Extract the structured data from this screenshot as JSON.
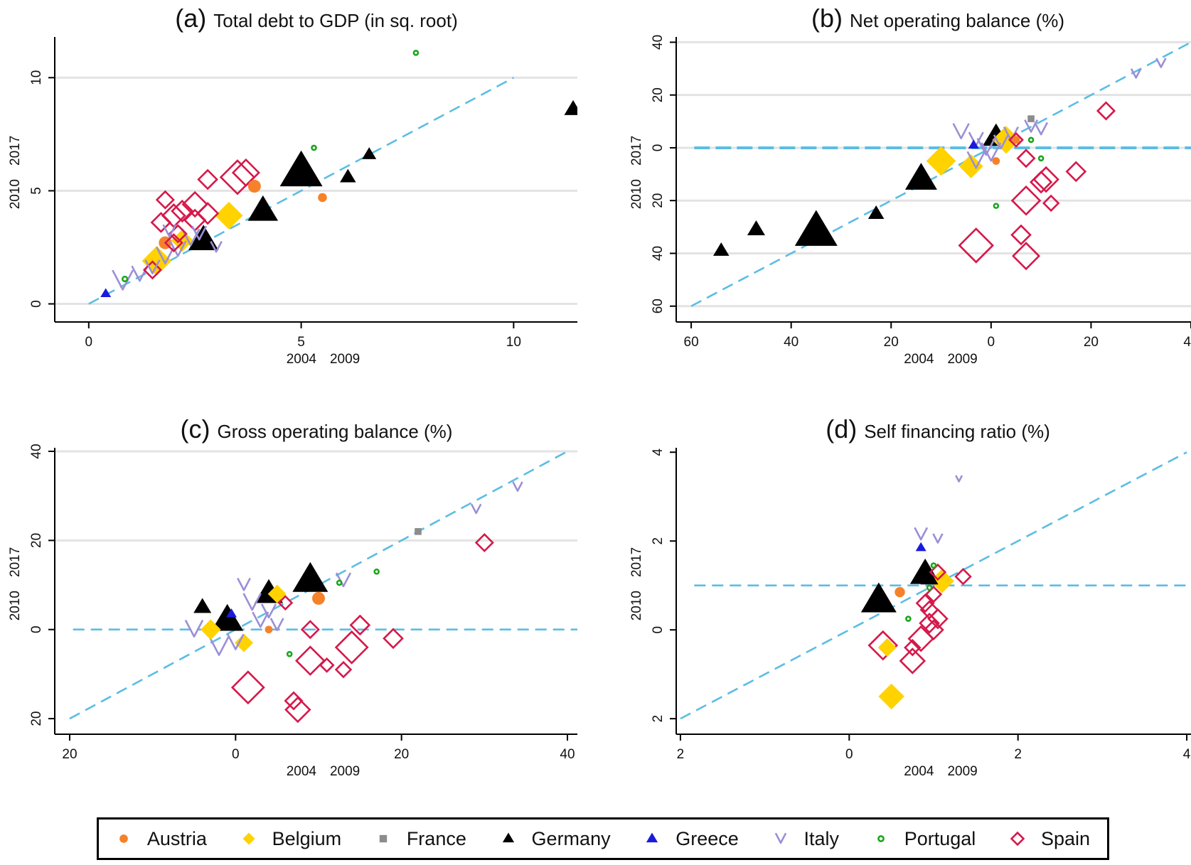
{
  "chart_data": [
    {
      "type": "scatter",
      "title_letter": "(a)",
      "title": "Total debt to GDP (in sq. root)",
      "xlabel": "2004 2009",
      "ylabel": "2010 2017",
      "xlim": [
        -0.8,
        11.5
      ],
      "ylim": [
        -0.8,
        11.8
      ],
      "xticks": [
        0,
        5,
        10
      ],
      "yticks": [
        0,
        5,
        10
      ],
      "grid": [
        0,
        5,
        10
      ],
      "refline": "diagonal",
      "hline": null,
      "points": [
        {
          "c": "Germany",
          "x": 11.4,
          "y": 8.6,
          "s": 1.0
        },
        {
          "c": "Germany",
          "x": 5.0,
          "y": 5.8,
          "s": 2.4
        },
        {
          "c": "Germany",
          "x": 4.1,
          "y": 4.1,
          "s": 1.7
        },
        {
          "c": "Germany",
          "x": 6.1,
          "y": 5.6,
          "s": 0.9
        },
        {
          "c": "Germany",
          "x": 6.6,
          "y": 6.6,
          "s": 0.8
        },
        {
          "c": "Germany",
          "x": 2.7,
          "y": 2.8,
          "s": 1.7
        },
        {
          "c": "Portugal",
          "x": 7.7,
          "y": 11.1,
          "s": 0.5
        },
        {
          "c": "Portugal",
          "x": 5.3,
          "y": 6.9,
          "s": 0.5
        },
        {
          "c": "Portugal",
          "x": 0.85,
          "y": 1.1,
          "s": 0.6
        },
        {
          "c": "Austria",
          "x": 3.9,
          "y": 5.2,
          "s": 1.0
        },
        {
          "c": "Austria",
          "x": 5.5,
          "y": 4.7,
          "s": 0.7
        },
        {
          "c": "Austria",
          "x": 1.8,
          "y": 2.7,
          "s": 1.0
        },
        {
          "c": "Belgium",
          "x": 3.3,
          "y": 3.9,
          "s": 1.5
        },
        {
          "c": "Belgium",
          "x": 1.6,
          "y": 1.9,
          "s": 1.6
        },
        {
          "c": "Belgium",
          "x": 2.2,
          "y": 2.8,
          "s": 1.2
        },
        {
          "c": "Greece",
          "x": 0.4,
          "y": 0.45,
          "s": 0.6
        },
        {
          "c": "Spain",
          "x": 3.5,
          "y": 5.6,
          "s": 1.8
        },
        {
          "c": "Spain",
          "x": 3.7,
          "y": 5.8,
          "s": 1.4
        },
        {
          "c": "Spain",
          "x": 2.8,
          "y": 5.5,
          "s": 1.0
        },
        {
          "c": "Spain",
          "x": 1.8,
          "y": 4.6,
          "s": 0.9
        },
        {
          "c": "Spain",
          "x": 2.5,
          "y": 4.4,
          "s": 1.3
        },
        {
          "c": "Spain",
          "x": 2.2,
          "y": 4.1,
          "s": 1.1
        },
        {
          "c": "Spain",
          "x": 2.0,
          "y": 3.9,
          "s": 1.2
        },
        {
          "c": "Spain",
          "x": 2.8,
          "y": 4.0,
          "s": 1.1
        },
        {
          "c": "Spain",
          "x": 1.7,
          "y": 3.6,
          "s": 1.0
        },
        {
          "c": "Spain",
          "x": 2.5,
          "y": 3.7,
          "s": 1.1
        },
        {
          "c": "Spain",
          "x": 2.1,
          "y": 3.1,
          "s": 0.9
        },
        {
          "c": "Spain",
          "x": 2.0,
          "y": 2.7,
          "s": 0.9
        },
        {
          "c": "Spain",
          "x": 1.5,
          "y": 1.5,
          "s": 0.9
        },
        {
          "c": "Italy",
          "x": 0.8,
          "y": 1.0,
          "s": 1.3
        },
        {
          "c": "Italy",
          "x": 1.2,
          "y": 1.3,
          "s": 1.0
        },
        {
          "c": "Italy",
          "x": 1.5,
          "y": 1.6,
          "s": 0.9
        },
        {
          "c": "Italy",
          "x": 1.8,
          "y": 2.1,
          "s": 1.1
        },
        {
          "c": "Italy",
          "x": 2.1,
          "y": 2.4,
          "s": 1.0
        },
        {
          "c": "Italy",
          "x": 2.4,
          "y": 2.9,
          "s": 1.1
        },
        {
          "c": "Italy",
          "x": 2.6,
          "y": 3.1,
          "s": 0.9
        },
        {
          "c": "Italy",
          "x": 3.0,
          "y": 2.5,
          "s": 0.7
        },
        {
          "c": "Italy",
          "x": 1.9,
          "y": 3.2,
          "s": 0.8
        }
      ]
    },
    {
      "type": "scatter",
      "title_letter": "(b)",
      "title": "Net operating balance (%)",
      "xlabel": "2004 2009",
      "ylabel": "2010 2017",
      "xlim": [
        -63,
        40
      ],
      "ylim": [
        -66,
        42
      ],
      "xticks": [
        -60,
        -40,
        -20,
        0,
        20,
        40
      ],
      "xtick_labels": [
        "60",
        "40",
        "20",
        "0",
        "20",
        "40"
      ],
      "yticks": [
        -60,
        -40,
        -20,
        0,
        20,
        40
      ],
      "ytick_labels": [
        "60",
        "40",
        "20",
        "0",
        "20",
        "40"
      ],
      "grid": [
        -60,
        -40,
        -20,
        0,
        20,
        40
      ],
      "refline": "diagonal",
      "hline": 0,
      "points": [
        {
          "c": "Germany",
          "x": -35,
          "y": -32,
          "s": 2.4
        },
        {
          "c": "Germany",
          "x": -54,
          "y": -39,
          "s": 0.9
        },
        {
          "c": "Germany",
          "x": -47,
          "y": -31,
          "s": 1.0
        },
        {
          "c": "Germany",
          "x": -23,
          "y": -25,
          "s": 0.9
        },
        {
          "c": "Germany",
          "x": -14,
          "y": -12,
          "s": 1.8
        },
        {
          "c": "Germany",
          "x": 1,
          "y": 4,
          "s": 1.5
        },
        {
          "c": "Belgium",
          "x": -10,
          "y": -5,
          "s": 1.6
        },
        {
          "c": "Belgium",
          "x": -4,
          "y": -7,
          "s": 1.3
        },
        {
          "c": "Belgium",
          "x": 3,
          "y": 3,
          "s": 1.5
        },
        {
          "c": "Austria",
          "x": 1,
          "y": -5,
          "s": 0.6
        },
        {
          "c": "Austria",
          "x": 5,
          "y": 3,
          "s": 0.6
        },
        {
          "c": "Greece",
          "x": -3.5,
          "y": 1,
          "s": 0.6
        },
        {
          "c": "France",
          "x": 8,
          "y": 11,
          "s": 0.6
        },
        {
          "c": "Portugal",
          "x": 8,
          "y": 3,
          "s": 0.5
        },
        {
          "c": "Portugal",
          "x": 10,
          "y": -4,
          "s": 0.5
        },
        {
          "c": "Portugal",
          "x": 1,
          "y": -22,
          "s": 0.5
        },
        {
          "c": "Italy",
          "x": -6,
          "y": 6,
          "s": 1.0
        },
        {
          "c": "Italy",
          "x": -3,
          "y": 3,
          "s": 0.9
        },
        {
          "c": "Italy",
          "x": -1,
          "y": 0,
          "s": 1.1
        },
        {
          "c": "Italy",
          "x": -3,
          "y": -5,
          "s": 1.1
        },
        {
          "c": "Italy",
          "x": 0,
          "y": -2,
          "s": 1.2
        },
        {
          "c": "Italy",
          "x": 2,
          "y": 2,
          "s": 0.9
        },
        {
          "c": "Italy",
          "x": 4,
          "y": 5,
          "s": 0.9
        },
        {
          "c": "Italy",
          "x": 8,
          "y": 8,
          "s": 0.8
        },
        {
          "c": "Italy",
          "x": 10,
          "y": 7,
          "s": 0.8
        },
        {
          "c": "Italy",
          "x": 29,
          "y": 28,
          "s": 0.6
        },
        {
          "c": "Italy",
          "x": 34,
          "y": 32,
          "s": 0.6
        },
        {
          "c": "Spain",
          "x": 23,
          "y": 14,
          "s": 0.9
        },
        {
          "c": "Spain",
          "x": 17,
          "y": -9,
          "s": 1.0
        },
        {
          "c": "Spain",
          "x": 11,
          "y": -12,
          "s": 1.3
        },
        {
          "c": "Spain",
          "x": 10,
          "y": -13,
          "s": 1.1
        },
        {
          "c": "Spain",
          "x": 12,
          "y": -21,
          "s": 0.8
        },
        {
          "c": "Spain",
          "x": 7,
          "y": -20,
          "s": 1.5
        },
        {
          "c": "Spain",
          "x": 6,
          "y": -33,
          "s": 1.0
        },
        {
          "c": "Spain",
          "x": 7,
          "y": -41,
          "s": 1.4
        },
        {
          "c": "Spain",
          "x": -3,
          "y": -37,
          "s": 1.8
        },
        {
          "c": "Spain",
          "x": 7,
          "y": -4,
          "s": 0.9
        },
        {
          "c": "Spain",
          "x": 5,
          "y": 3,
          "s": 0.7
        }
      ]
    },
    {
      "type": "scatter",
      "title_letter": "(c)",
      "title": "Gross operating balance (%)",
      "xlabel": "2004 2009",
      "ylabel": "2010 2017",
      "xlim": [
        -21.8,
        41.2
      ],
      "ylim": [
        -23.5,
        40.8
      ],
      "xticks": [
        -20,
        0,
        20,
        40
      ],
      "xtick_labels": [
        "20",
        "0",
        "20",
        "40"
      ],
      "yticks": [
        -20,
        0,
        20,
        40
      ],
      "ytick_labels": [
        "20",
        "0",
        "20",
        "40"
      ],
      "grid": [
        20,
        40
      ],
      "refline": "diagonal",
      "hline": 0,
      "points": [
        {
          "c": "Germany",
          "x": 9,
          "y": 11,
          "s": 2.0
        },
        {
          "c": "Germany",
          "x": 4,
          "y": 8,
          "s": 1.6
        },
        {
          "c": "Germany",
          "x": -4,
          "y": 5,
          "s": 1.0
        },
        {
          "c": "Germany",
          "x": -1,
          "y": 2,
          "s": 1.8
        },
        {
          "c": "Belgium",
          "x": 5,
          "y": 8,
          "s": 1.0
        },
        {
          "c": "Belgium",
          "x": -3,
          "y": 0,
          "s": 1.1
        },
        {
          "c": "Belgium",
          "x": 1,
          "y": -3,
          "s": 1.0
        },
        {
          "c": "Austria",
          "x": 10,
          "y": 7,
          "s": 1.0
        },
        {
          "c": "Austria",
          "x": 4,
          "y": 0,
          "s": 0.6
        },
        {
          "c": "Greece",
          "x": -0.5,
          "y": 3.5,
          "s": 0.6
        },
        {
          "c": "France",
          "x": 22,
          "y": 22,
          "s": 0.6
        },
        {
          "c": "Portugal",
          "x": 17,
          "y": 13,
          "s": 0.5
        },
        {
          "c": "Portugal",
          "x": 12.5,
          "y": 10.5,
          "s": 0.5
        },
        {
          "c": "Portugal",
          "x": 6.5,
          "y": -5.5,
          "s": 0.5
        },
        {
          "c": "Italy",
          "x": 34,
          "y": 32,
          "s": 0.6
        },
        {
          "c": "Italy",
          "x": 29,
          "y": 27,
          "s": 0.6
        },
        {
          "c": "Italy",
          "x": 13,
          "y": 11,
          "s": 0.9
        },
        {
          "c": "Italy",
          "x": 1,
          "y": 10,
          "s": 0.8
        },
        {
          "c": "Italy",
          "x": 2,
          "y": 6,
          "s": 1.1
        },
        {
          "c": "Italy",
          "x": 3,
          "y": 2,
          "s": 1.0
        },
        {
          "c": "Italy",
          "x": -5,
          "y": 0,
          "s": 1.1
        },
        {
          "c": "Italy",
          "x": -2,
          "y": -4,
          "s": 1.2
        },
        {
          "c": "Italy",
          "x": 0,
          "y": -3,
          "s": 1.0
        },
        {
          "c": "Italy",
          "x": 4,
          "y": 4,
          "s": 0.9
        },
        {
          "c": "Italy",
          "x": 5,
          "y": 1,
          "s": 0.8
        },
        {
          "c": "Spain",
          "x": 30,
          "y": 19.5,
          "s": 0.9
        },
        {
          "c": "Spain",
          "x": 19,
          "y": -2,
          "s": 1.0
        },
        {
          "c": "Spain",
          "x": 15,
          "y": 1,
          "s": 1.0
        },
        {
          "c": "Spain",
          "x": 14,
          "y": -4,
          "s": 1.7
        },
        {
          "c": "Spain",
          "x": 13,
          "y": -9,
          "s": 0.8
        },
        {
          "c": "Spain",
          "x": 11,
          "y": -8,
          "s": 0.7
        },
        {
          "c": "Spain",
          "x": 9,
          "y": -7,
          "s": 1.5
        },
        {
          "c": "Spain",
          "x": 9,
          "y": 0,
          "s": 0.9
        },
        {
          "c": "Spain",
          "x": 6,
          "y": 6,
          "s": 0.7
        },
        {
          "c": "Spain",
          "x": 1.5,
          "y": -13,
          "s": 1.7
        },
        {
          "c": "Spain",
          "x": 7,
          "y": -16,
          "s": 0.9
        },
        {
          "c": "Spain",
          "x": 7.5,
          "y": -18,
          "s": 1.3
        }
      ]
    },
    {
      "type": "scatter",
      "title_letter": "(d)",
      "title": "Self financing ratio (%)",
      "xlabel": "2004 2009",
      "ylabel": "2010 2017",
      "xlim": [
        -2.05,
        4.05
      ],
      "ylim": [
        -2.35,
        4.1
      ],
      "xticks": [
        -2,
        0,
        2,
        4
      ],
      "xtick_labels": [
        "2",
        "0",
        "2",
        "4"
      ],
      "yticks": [
        -2,
        0,
        2,
        4
      ],
      "ytick_labels": [
        "2",
        "0",
        "2",
        "4"
      ],
      "grid": [],
      "refline": "diagonal",
      "hline": 1,
      "points": [
        {
          "c": "Germany",
          "x": 0.35,
          "y": 0.65,
          "s": 2.0
        },
        {
          "c": "Germany",
          "x": 0.9,
          "y": 1.25,
          "s": 1.7
        },
        {
          "c": "Germany",
          "x": 0.95,
          "y": 1.15,
          "s": 1.0
        },
        {
          "c": "Belgium",
          "x": 1.1,
          "y": 1.1,
          "s": 1.3
        },
        {
          "c": "Belgium",
          "x": 0.45,
          "y": -0.4,
          "s": 1.0
        },
        {
          "c": "Belgium",
          "x": 0.5,
          "y": -1.5,
          "s": 1.4
        },
        {
          "c": "Austria",
          "x": 0.6,
          "y": 0.85,
          "s": 0.8
        },
        {
          "c": "Greece",
          "x": 0.85,
          "y": 1.85,
          "s": 0.6
        },
        {
          "c": "Portugal",
          "x": 1.0,
          "y": 1.45,
          "s": 0.5
        },
        {
          "c": "Portugal",
          "x": 0.7,
          "y": 0.25,
          "s": 0.5
        },
        {
          "c": "Portugal",
          "x": 0.95,
          "y": 0.95,
          "s": 0.5
        },
        {
          "c": "Italy",
          "x": 1.3,
          "y": 3.4,
          "s": 0.4
        },
        {
          "c": "Italy",
          "x": 0.85,
          "y": 2.15,
          "s": 0.8
        },
        {
          "c": "Italy",
          "x": 1.05,
          "y": 2.05,
          "s": 0.6
        },
        {
          "c": "Spain",
          "x": 0.4,
          "y": -0.35,
          "s": 1.5
        },
        {
          "c": "Spain",
          "x": 0.75,
          "y": -0.4,
          "s": 0.8
        },
        {
          "c": "Spain",
          "x": 0.75,
          "y": -0.7,
          "s": 1.3
        },
        {
          "c": "Spain",
          "x": 0.85,
          "y": -0.2,
          "s": 1.3
        },
        {
          "c": "Spain",
          "x": 0.95,
          "y": 0.15,
          "s": 1.0
        },
        {
          "c": "Spain",
          "x": 1.0,
          "y": 0.0,
          "s": 1.0
        },
        {
          "c": "Spain",
          "x": 1.05,
          "y": 0.25,
          "s": 1.0
        },
        {
          "c": "Spain",
          "x": 0.95,
          "y": 0.45,
          "s": 0.9
        },
        {
          "c": "Spain",
          "x": 0.9,
          "y": 0.6,
          "s": 0.9
        },
        {
          "c": "Spain",
          "x": 1.0,
          "y": 0.8,
          "s": 0.8
        },
        {
          "c": "Spain",
          "x": 1.05,
          "y": 1.3,
          "s": 0.8
        },
        {
          "c": "Spain",
          "x": 1.35,
          "y": 1.2,
          "s": 0.8
        }
      ]
    }
  ],
  "legend": [
    {
      "name": "Austria",
      "marker": "circle",
      "color": "#f5822a"
    },
    {
      "name": "Belgium",
      "marker": "diamond",
      "color": "#ffd200"
    },
    {
      "name": "France",
      "marker": "square",
      "color": "#8c8c8c"
    },
    {
      "name": "Germany",
      "marker": "triangle",
      "color": "#000000"
    },
    {
      "name": "Greece",
      "marker": "triangle",
      "color": "#1a1adc"
    },
    {
      "name": "Italy",
      "marker": "vee",
      "color": "#9b8fd6"
    },
    {
      "name": "Portugal",
      "marker": "circle-hollow",
      "color": "#1aa51a"
    },
    {
      "name": "Spain",
      "marker": "diamond-hollow",
      "color": "#d6184a"
    }
  ],
  "styles": {
    "refline_color": "#5bbde4",
    "grid_color": "#e3e3e3"
  }
}
